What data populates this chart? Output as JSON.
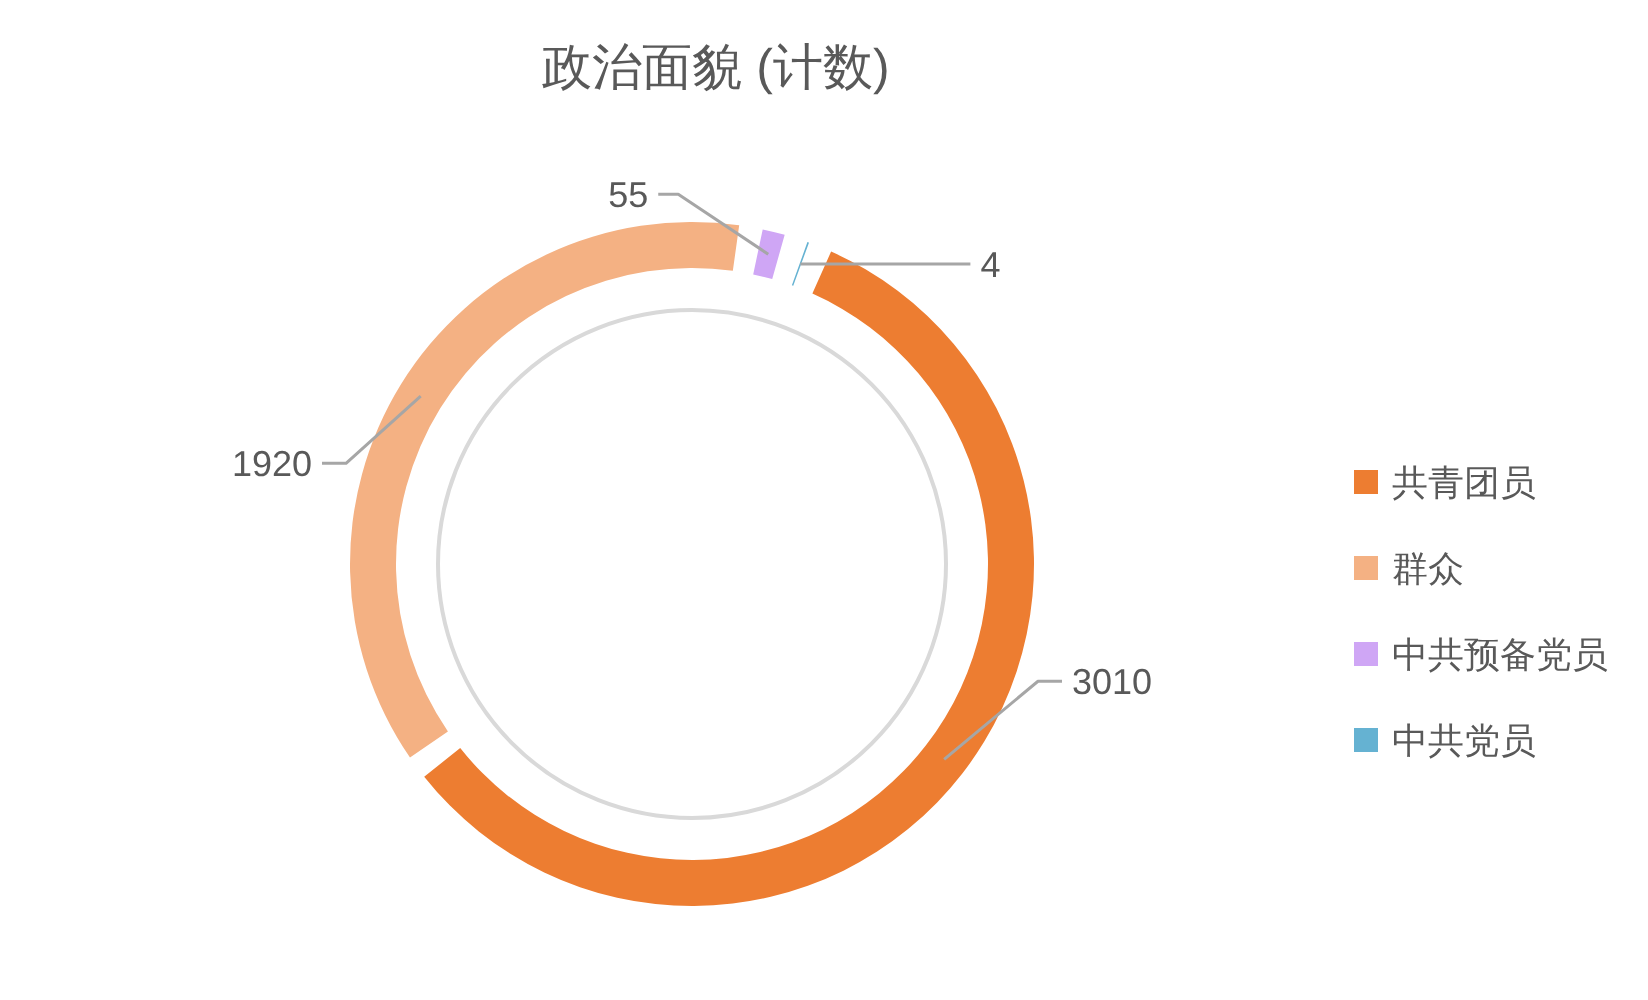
{
  "chart_data": {
    "type": "donut",
    "title": "政治面貌 (计数)",
    "categories": [
      "共青团员",
      "群众",
      "中共预备党员",
      "中共党员"
    ],
    "values": [
      3010,
      1920,
      55,
      4
    ],
    "colors": [
      "#ed7d31",
      "#f4b183",
      "#cfa6f5",
      "#65b2d2"
    ],
    "data_labels": true,
    "legend": "right"
  }
}
